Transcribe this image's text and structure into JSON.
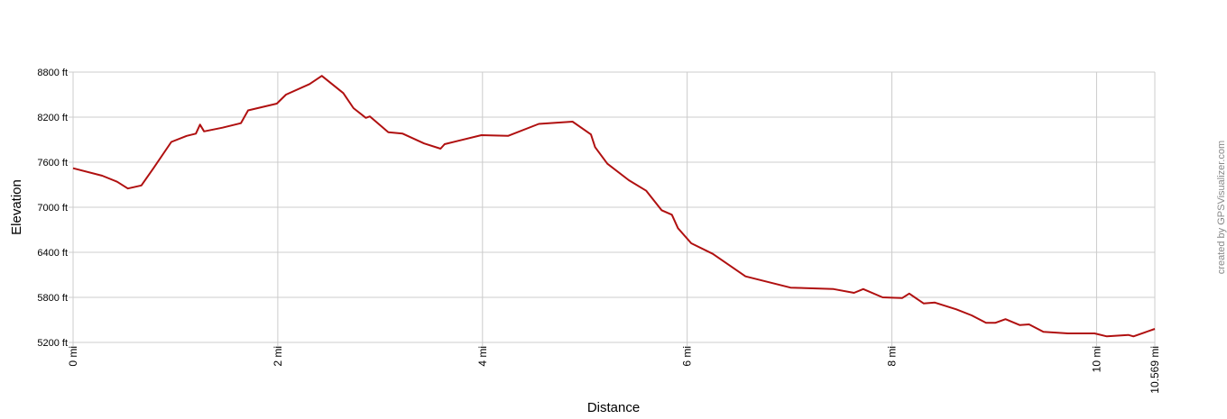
{
  "chart_data": {
    "type": "line",
    "title": "",
    "xlabel": "Distance",
    "ylabel": "Elevation",
    "credit": "created by GPSVisualizer.com",
    "xlim": [
      0,
      10.569
    ],
    "ylim": [
      5200,
      8800
    ],
    "grid": true,
    "line_color": "#b01010",
    "grid_color": "#cccccc",
    "x_ticks": [
      {
        "value": 0,
        "label": "0 mi"
      },
      {
        "value": 2,
        "label": "2 mi"
      },
      {
        "value": 4,
        "label": "4 mi"
      },
      {
        "value": 6,
        "label": "6 mi"
      },
      {
        "value": 8,
        "label": "8 mi"
      },
      {
        "value": 10,
        "label": "10 mi"
      },
      {
        "value": 10.569,
        "label": "10.569 mi"
      }
    ],
    "y_ticks": [
      {
        "value": 8800,
        "label": "8800 ft"
      },
      {
        "value": 8200,
        "label": "8200 ft"
      },
      {
        "value": 7600,
        "label": "7600 ft"
      },
      {
        "value": 7000,
        "label": "7000 ft"
      },
      {
        "value": 6400,
        "label": "6400 ft"
      },
      {
        "value": 5800,
        "label": "5800 ft"
      },
      {
        "value": 5200,
        "label": "5200 ft"
      }
    ],
    "series": [
      {
        "x": [
          0,
          0.285,
          0.43,
          0.535,
          0.667,
          0.785,
          0.96,
          1.11,
          1.2,
          1.24,
          1.28,
          1.46,
          1.64,
          1.71,
          1.99,
          2.08,
          2.31,
          2.43,
          2.64,
          2.74,
          2.86,
          2.9,
          3.08,
          3.22,
          3.43,
          3.59,
          3.63,
          3.99,
          4.25,
          4.55,
          4.88,
          5.06,
          5.1,
          5.22,
          5.43,
          5.6,
          5.75,
          5.85,
          5.91,
          6.04,
          6.25,
          6.57,
          7.01,
          7.43,
          7.63,
          7.72,
          7.91,
          8.1,
          8.17,
          8.31,
          8.42,
          8.63,
          8.78,
          8.92,
          9.01,
          9.11,
          9.25,
          9.34,
          9.48,
          9.72,
          9.98,
          10.1,
          10.31,
          10.36,
          10.569
        ],
        "y": [
          7520,
          7420,
          7340,
          7250,
          7290,
          7520,
          7870,
          7950,
          7980,
          8100,
          8010,
          8060,
          8120,
          8290,
          8380,
          8500,
          8640,
          8750,
          8520,
          8320,
          8190,
          8210,
          8000,
          7980,
          7850,
          7780,
          7840,
          7960,
          7950,
          8110,
          8140,
          7970,
          7800,
          7580,
          7360,
          7220,
          6960,
          6900,
          6720,
          6520,
          6380,
          6080,
          5930,
          5910,
          5860,
          5910,
          5800,
          5790,
          5850,
          5720,
          5730,
          5640,
          5560,
          5460,
          5460,
          5510,
          5430,
          5440,
          5340,
          5320,
          5320,
          5280,
          5300,
          5280,
          5380
        ]
      }
    ]
  }
}
